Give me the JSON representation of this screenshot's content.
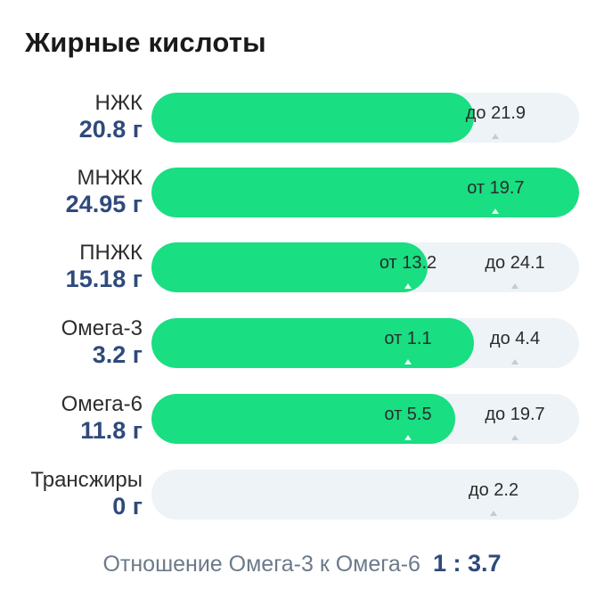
{
  "title": "Жирные кислоты",
  "rows": [
    {
      "name": "НЖК",
      "value": "20.8 г",
      "fill_fraction": 0.755,
      "markers": [
        {
          "label": "до 21.9",
          "pos": 0.805
        }
      ]
    },
    {
      "name": "МНЖК",
      "value": "24.95 г",
      "fill_fraction": 1.0,
      "markers": [
        {
          "label": "от 19.7",
          "pos": 0.805
        }
      ]
    },
    {
      "name": "ПНЖК",
      "value": "15.18 г",
      "fill_fraction": 0.645,
      "markers": [
        {
          "label": "от 13.2",
          "pos": 0.6
        },
        {
          "label": "до 24.1",
          "pos": 0.85
        }
      ]
    },
    {
      "name": "Омега-3",
      "value": "3.2 г",
      "fill_fraction": 0.755,
      "markers": [
        {
          "label": "от 1.1",
          "pos": 0.6
        },
        {
          "label": "до 4.4",
          "pos": 0.85
        }
      ]
    },
    {
      "name": "Омега-6",
      "value": "11.8 г",
      "fill_fraction": 0.71,
      "markers": [
        {
          "label": "от 5.5",
          "pos": 0.6
        },
        {
          "label": "до 19.7",
          "pos": 0.85
        }
      ]
    },
    {
      "name": "Трансжиры",
      "value": "0 г",
      "fill_fraction": 0.0,
      "markers": [
        {
          "label": "до 2.2",
          "pos": 0.8
        }
      ]
    }
  ],
  "ratio": {
    "label": "Отношение Омега-3 к Омега-6",
    "value": "1 : 3.7"
  },
  "colors": {
    "fill": "#19de82",
    "track": "#edf3f6",
    "value": "#2f4a7c"
  }
}
